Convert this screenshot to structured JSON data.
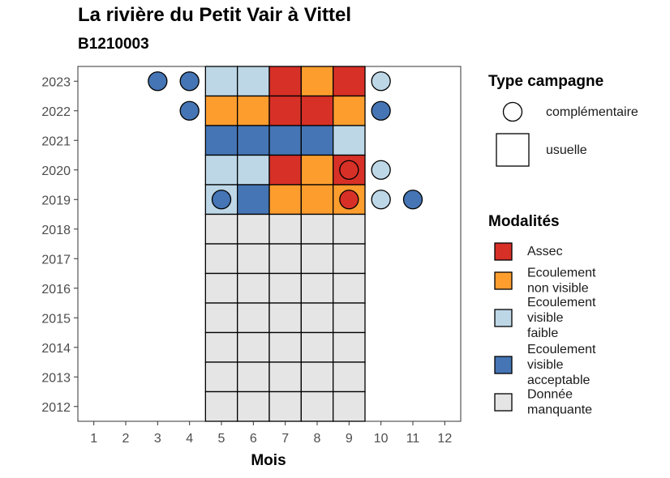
{
  "title": "La rivière du Petit Vair à Vittel",
  "subtitle": "B1210003",
  "colors": {
    "Assec": "#d73027",
    "Ecoulement non visible": "#fc9d2e",
    "Ecoulement visible faible": "#bdd7e7",
    "Ecoulement visible acceptable": "#4575b4",
    "Donnée manquante": "#e5e5e5"
  },
  "chart_data": {
    "type": "heatmap",
    "title": "La rivière du Petit Vair à Vittel",
    "subtitle": "B1210003",
    "xlabel": "Mois",
    "ylabel": "",
    "x_ticks": [
      1,
      2,
      3,
      4,
      5,
      6,
      7,
      8,
      9,
      10,
      11,
      12
    ],
    "y_ticks": [
      2012,
      2013,
      2014,
      2015,
      2016,
      2017,
      2018,
      2019,
      2020,
      2021,
      2022,
      2023
    ],
    "xlim": [
      0.5,
      12.5
    ],
    "ylim": [
      2011.5,
      2023.5
    ],
    "grid": false,
    "legend_position": "right",
    "series": [
      {
        "name": "usuelle",
        "shape": "square",
        "points": [
          {
            "year": 2023,
            "month": 5,
            "modalite": "Ecoulement visible faible"
          },
          {
            "year": 2023,
            "month": 6,
            "modalite": "Ecoulement visible faible"
          },
          {
            "year": 2023,
            "month": 7,
            "modalite": "Assec"
          },
          {
            "year": 2023,
            "month": 8,
            "modalite": "Ecoulement non visible"
          },
          {
            "year": 2023,
            "month": 9,
            "modalite": "Assec"
          },
          {
            "year": 2022,
            "month": 5,
            "modalite": "Ecoulement non visible"
          },
          {
            "year": 2022,
            "month": 6,
            "modalite": "Ecoulement non visible"
          },
          {
            "year": 2022,
            "month": 7,
            "modalite": "Assec"
          },
          {
            "year": 2022,
            "month": 8,
            "modalite": "Assec"
          },
          {
            "year": 2022,
            "month": 9,
            "modalite": "Ecoulement non visible"
          },
          {
            "year": 2021,
            "month": 5,
            "modalite": "Ecoulement visible acceptable"
          },
          {
            "year": 2021,
            "month": 6,
            "modalite": "Ecoulement visible acceptable"
          },
          {
            "year": 2021,
            "month": 7,
            "modalite": "Ecoulement visible acceptable"
          },
          {
            "year": 2021,
            "month": 8,
            "modalite": "Ecoulement visible acceptable"
          },
          {
            "year": 2021,
            "month": 9,
            "modalite": "Ecoulement visible faible"
          },
          {
            "year": 2020,
            "month": 5,
            "modalite": "Ecoulement visible faible"
          },
          {
            "year": 2020,
            "month": 6,
            "modalite": "Ecoulement visible faible"
          },
          {
            "year": 2020,
            "month": 7,
            "modalite": "Assec"
          },
          {
            "year": 2020,
            "month": 8,
            "modalite": "Ecoulement non visible"
          },
          {
            "year": 2020,
            "month": 9,
            "modalite": "Assec"
          },
          {
            "year": 2019,
            "month": 5,
            "modalite": "Ecoulement visible faible"
          },
          {
            "year": 2019,
            "month": 6,
            "modalite": "Ecoulement visible acceptable"
          },
          {
            "year": 2019,
            "month": 7,
            "modalite": "Ecoulement non visible"
          },
          {
            "year": 2019,
            "month": 8,
            "modalite": "Ecoulement non visible"
          },
          {
            "year": 2019,
            "month": 9,
            "modalite": "Ecoulement non visible"
          },
          {
            "year": 2018,
            "month": 5,
            "modalite": "Donnée manquante"
          },
          {
            "year": 2018,
            "month": 6,
            "modalite": "Donnée manquante"
          },
          {
            "year": 2018,
            "month": 7,
            "modalite": "Donnée manquante"
          },
          {
            "year": 2018,
            "month": 8,
            "modalite": "Donnée manquante"
          },
          {
            "year": 2018,
            "month": 9,
            "modalite": "Donnée manquante"
          },
          {
            "year": 2017,
            "month": 5,
            "modalite": "Donnée manquante"
          },
          {
            "year": 2017,
            "month": 6,
            "modalite": "Donnée manquante"
          },
          {
            "year": 2017,
            "month": 7,
            "modalite": "Donnée manquante"
          },
          {
            "year": 2017,
            "month": 8,
            "modalite": "Donnée manquante"
          },
          {
            "year": 2017,
            "month": 9,
            "modalite": "Donnée manquante"
          },
          {
            "year": 2016,
            "month": 5,
            "modalite": "Donnée manquante"
          },
          {
            "year": 2016,
            "month": 6,
            "modalite": "Donnée manquante"
          },
          {
            "year": 2016,
            "month": 7,
            "modalite": "Donnée manquante"
          },
          {
            "year": 2016,
            "month": 8,
            "modalite": "Donnée manquante"
          },
          {
            "year": 2016,
            "month": 9,
            "modalite": "Donnée manquante"
          },
          {
            "year": 2015,
            "month": 5,
            "modalite": "Donnée manquante"
          },
          {
            "year": 2015,
            "month": 6,
            "modalite": "Donnée manquante"
          },
          {
            "year": 2015,
            "month": 7,
            "modalite": "Donnée manquante"
          },
          {
            "year": 2015,
            "month": 8,
            "modalite": "Donnée manquante"
          },
          {
            "year": 2015,
            "month": 9,
            "modalite": "Donnée manquante"
          },
          {
            "year": 2014,
            "month": 5,
            "modalite": "Donnée manquante"
          },
          {
            "year": 2014,
            "month": 6,
            "modalite": "Donnée manquante"
          },
          {
            "year": 2014,
            "month": 7,
            "modalite": "Donnée manquante"
          },
          {
            "year": 2014,
            "month": 8,
            "modalite": "Donnée manquante"
          },
          {
            "year": 2014,
            "month": 9,
            "modalite": "Donnée manquante"
          },
          {
            "year": 2013,
            "month": 5,
            "modalite": "Donnée manquante"
          },
          {
            "year": 2013,
            "month": 6,
            "modalite": "Donnée manquante"
          },
          {
            "year": 2013,
            "month": 7,
            "modalite": "Donnée manquante"
          },
          {
            "year": 2013,
            "month": 8,
            "modalite": "Donnée manquante"
          },
          {
            "year": 2013,
            "month": 9,
            "modalite": "Donnée manquante"
          },
          {
            "year": 2012,
            "month": 5,
            "modalite": "Donnée manquante"
          },
          {
            "year": 2012,
            "month": 6,
            "modalite": "Donnée manquante"
          },
          {
            "year": 2012,
            "month": 7,
            "modalite": "Donnée manquante"
          },
          {
            "year": 2012,
            "month": 8,
            "modalite": "Donnée manquante"
          },
          {
            "year": 2012,
            "month": 9,
            "modalite": "Donnée manquante"
          }
        ]
      },
      {
        "name": "complémentaire",
        "shape": "circle",
        "points": [
          {
            "year": 2023,
            "month": 3,
            "modalite": "Ecoulement visible acceptable"
          },
          {
            "year": 2023,
            "month": 4,
            "modalite": "Ecoulement visible acceptable"
          },
          {
            "year": 2023,
            "month": 10,
            "modalite": "Ecoulement visible faible"
          },
          {
            "year": 2022,
            "month": 4,
            "modalite": "Ecoulement visible acceptable"
          },
          {
            "year": 2022,
            "month": 10,
            "modalite": "Ecoulement visible acceptable"
          },
          {
            "year": 2020,
            "month": 9,
            "modalite": "Assec"
          },
          {
            "year": 2020,
            "month": 10,
            "modalite": "Ecoulement visible faible"
          },
          {
            "year": 2019,
            "month": 5,
            "modalite": "Ecoulement visible acceptable"
          },
          {
            "year": 2019,
            "month": 9,
            "modalite": "Assec"
          },
          {
            "year": 2019,
            "month": 10,
            "modalite": "Ecoulement visible faible"
          },
          {
            "year": 2019,
            "month": 11,
            "modalite": "Ecoulement visible acceptable"
          }
        ]
      }
    ]
  },
  "legend": {
    "type_title": "Type campagne",
    "type_items": [
      {
        "label": "complémentaire",
        "shape": "circle"
      },
      {
        "label": "usuelle",
        "shape": "square"
      }
    ],
    "modalites_title": "Modalités",
    "modalites_items": [
      {
        "key": "Assec",
        "lines": [
          "Assec"
        ]
      },
      {
        "key": "Ecoulement non visible",
        "lines": [
          "Ecoulement",
          "non visible"
        ]
      },
      {
        "key": "Ecoulement visible faible",
        "lines": [
          "Ecoulement",
          "visible",
          "faible"
        ]
      },
      {
        "key": "Ecoulement visible acceptable",
        "lines": [
          "Ecoulement",
          "visible",
          "acceptable"
        ]
      },
      {
        "key": "Donnée manquante",
        "lines": [
          "Donnée",
          "manquante"
        ]
      }
    ]
  }
}
